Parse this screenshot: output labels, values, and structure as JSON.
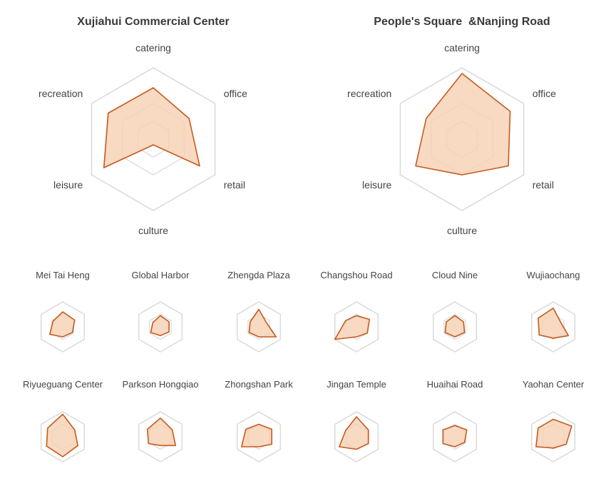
{
  "colors": {
    "line": "#c55a1e",
    "fill": "#f6cfb3",
    "grid": "#d9d9d9"
  },
  "chart_data": [
    {
      "type": "radar",
      "title": "Xujiahui Commercial Center",
      "axes": [
        "catering",
        "office",
        "retail",
        "culture",
        "leisure",
        "recreation"
      ],
      "range": [
        0,
        1
      ],
      "values": [
        0.72,
        0.58,
        0.75,
        0.08,
        0.8,
        0.73
      ]
    },
    {
      "type": "radar",
      "title": "People's Square  &Nanjing Road",
      "axes": [
        "catering",
        "office",
        "retail",
        "culture",
        "leisure",
        "recreation"
      ],
      "range": [
        0,
        1
      ],
      "values": [
        0.92,
        0.78,
        0.75,
        0.5,
        0.75,
        0.58
      ]
    },
    {
      "type": "radar",
      "title": "Mei Tai Heng",
      "values": [
        0.6,
        0.55,
        0.45,
        0.4,
        0.6,
        0.45
      ]
    },
    {
      "type": "radar",
      "title": "Global Harbor",
      "values": [
        0.45,
        0.4,
        0.4,
        0.35,
        0.45,
        0.35
      ]
    },
    {
      "type": "radar",
      "title": "Zhengda Plaza",
      "values": [
        0.7,
        0.35,
        0.8,
        0.4,
        0.45,
        0.4
      ]
    },
    {
      "type": "radar",
      "title": "Changshou Road",
      "values": [
        0.45,
        0.6,
        0.5,
        0.4,
        1.0,
        0.5
      ]
    },
    {
      "type": "radar",
      "title": "Cloud Nine",
      "values": [
        0.45,
        0.4,
        0.45,
        0.4,
        0.45,
        0.4
      ]
    },
    {
      "type": "radar",
      "title": "Wujiaochang",
      "values": [
        0.75,
        0.35,
        0.7,
        0.45,
        0.65,
        0.7
      ]
    },
    {
      "type": "radar",
      "title": "Riyueguang Center",
      "values": [
        0.9,
        0.55,
        0.7,
        0.8,
        0.75,
        0.7
      ]
    },
    {
      "type": "radar",
      "title": "Parkson Hongqiao",
      "values": [
        0.75,
        0.55,
        0.7,
        0.35,
        0.55,
        0.6
      ]
    },
    {
      "type": "radar",
      "title": "Zhongshan Park",
      "values": [
        0.5,
        0.6,
        0.6,
        0.4,
        0.8,
        0.6
      ]
    },
    {
      "type": "radar",
      "title": "Jingan Temple",
      "values": [
        0.8,
        0.55,
        0.55,
        0.5,
        0.8,
        0.5
      ]
    },
    {
      "type": "radar",
      "title": "Huaihai Road",
      "values": [
        0.45,
        0.55,
        0.45,
        0.4,
        0.55,
        0.55
      ]
    },
    {
      "type": "radar",
      "title": "Yaohan Center",
      "values": [
        0.7,
        0.85,
        0.6,
        0.45,
        0.8,
        0.7
      ]
    }
  ]
}
